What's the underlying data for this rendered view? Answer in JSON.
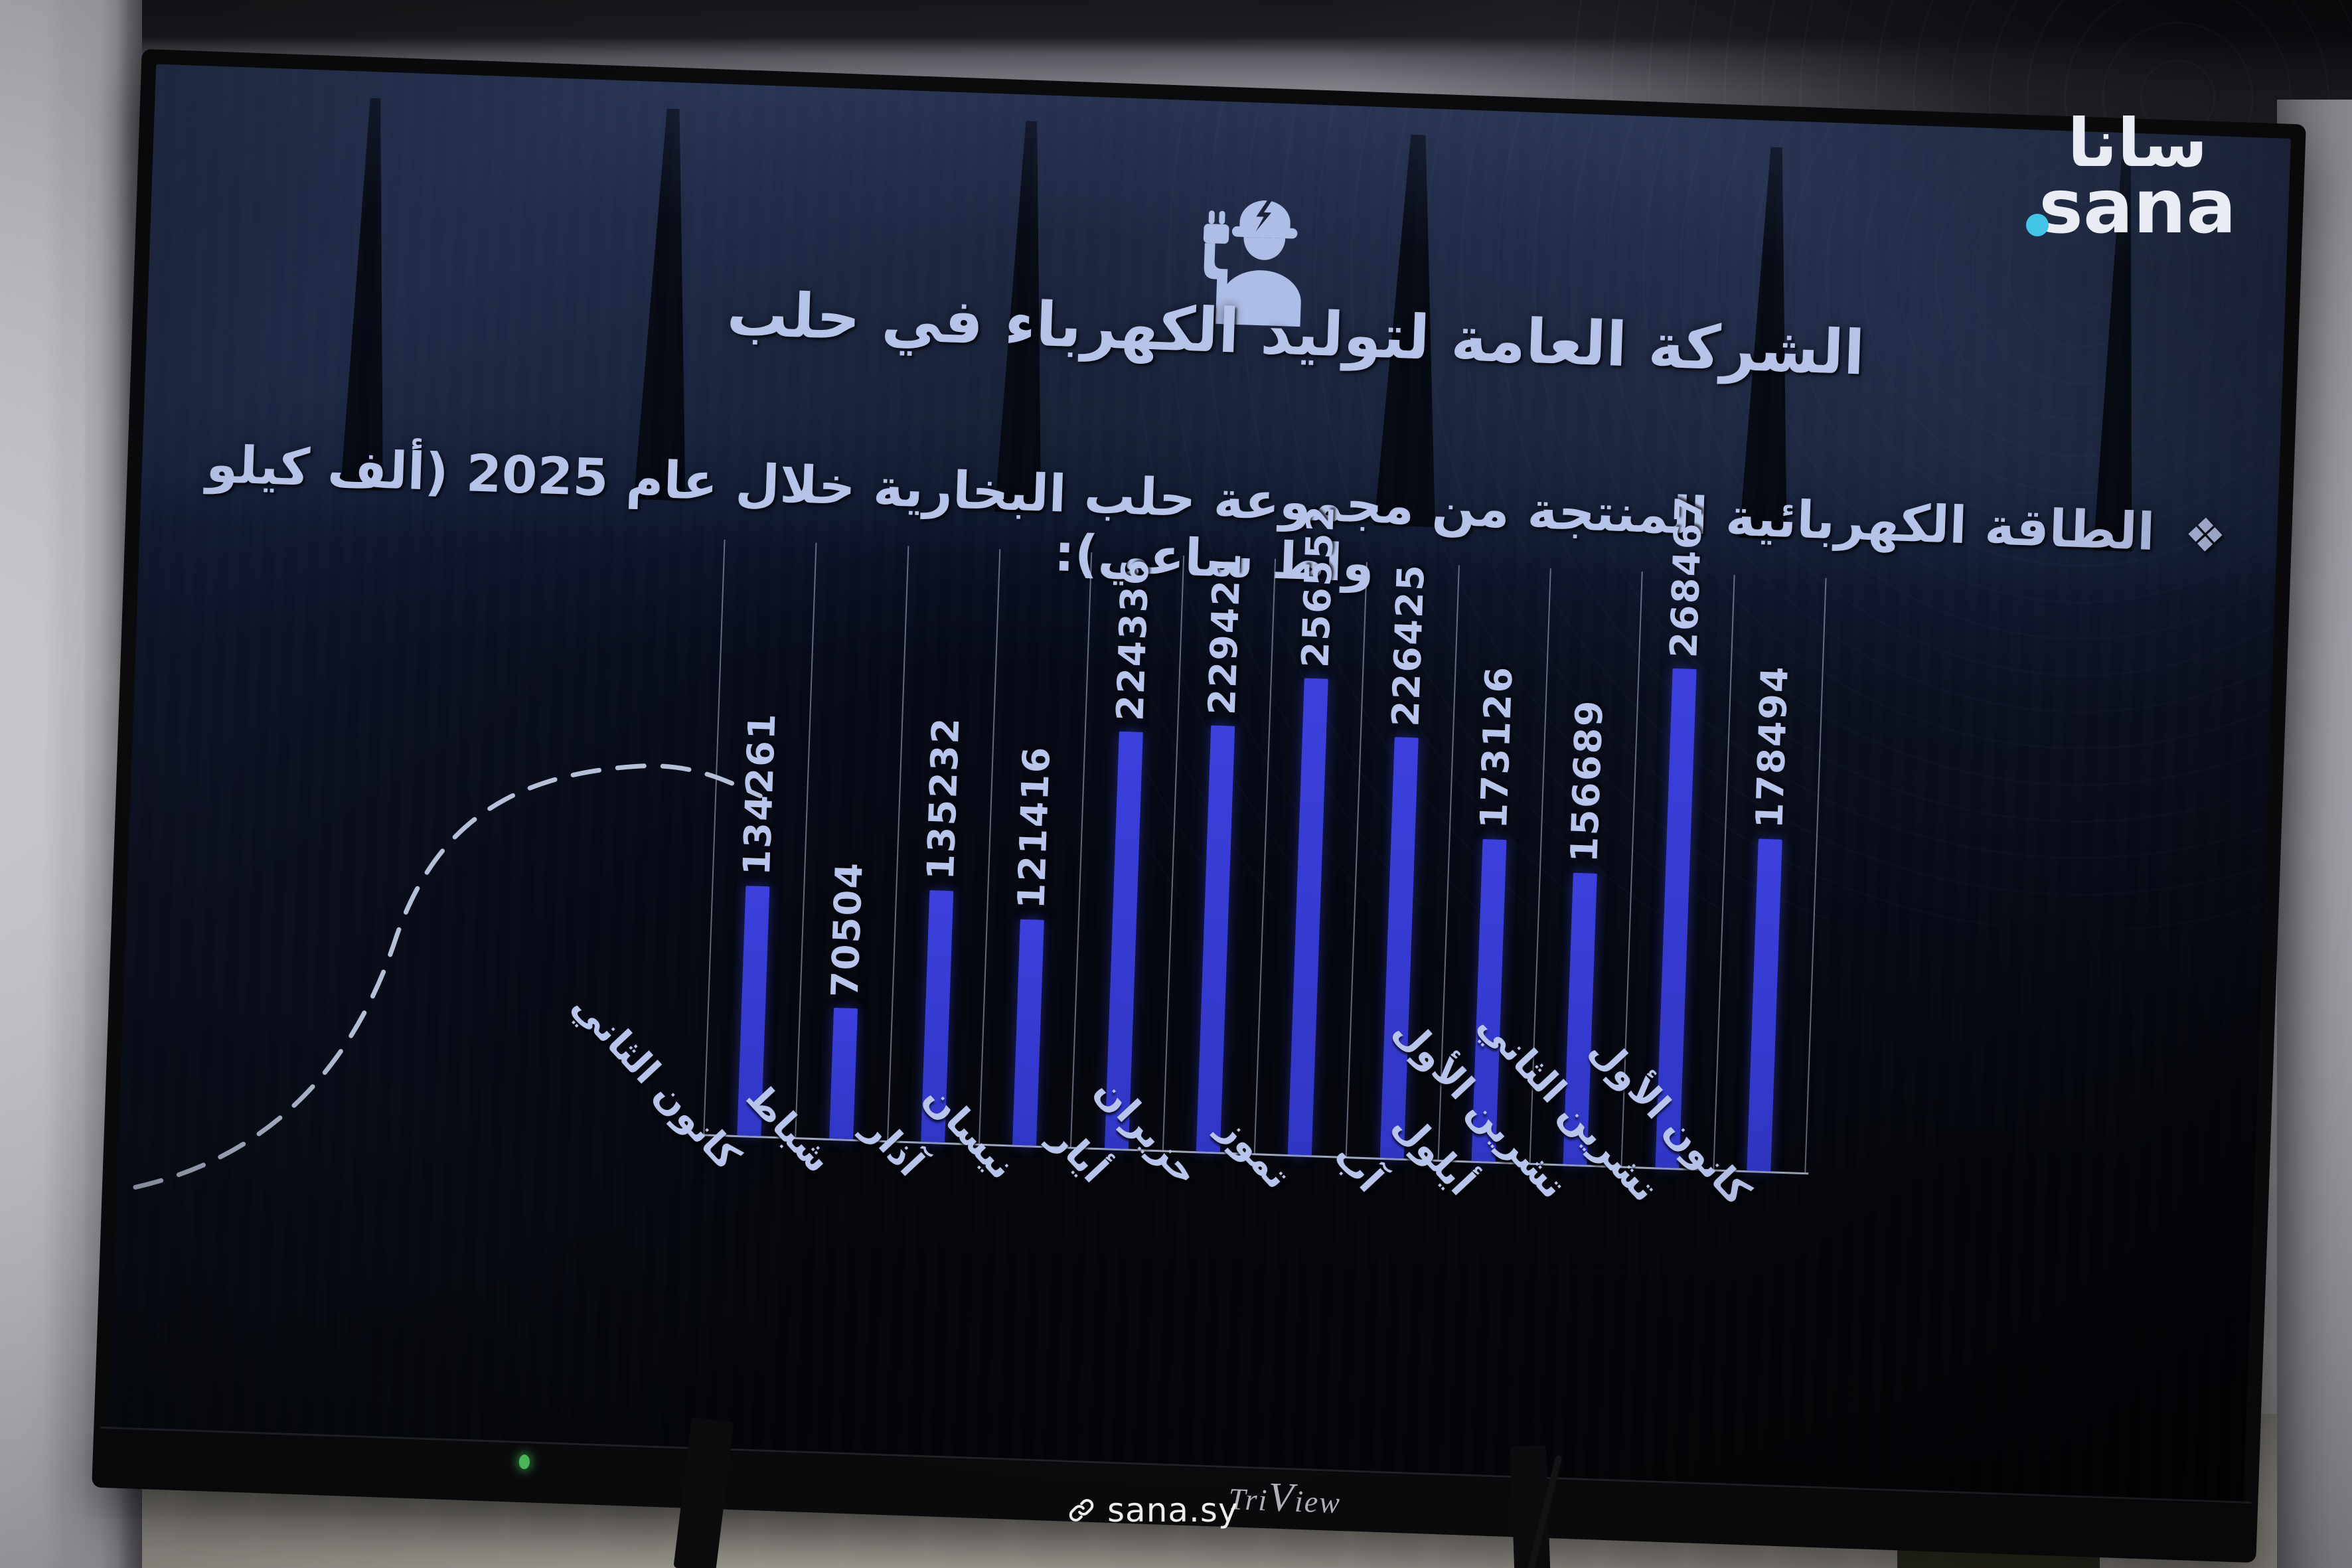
{
  "agency_logo": {
    "arabic": "سانا",
    "latin": "sana",
    "dot_color": "#41c4e6"
  },
  "slide": {
    "title": "الشركة العامة لتوليد الكهرباء في حلب",
    "bullet": "❖",
    "subtitle": "الطاقة الكهربائية المنتجة من مجموعة حلب البخارية خلال عام 2025 (ألف كيلو واط ساعي):"
  },
  "chart_data": {
    "type": "bar",
    "title": "الطاقة الكهربائية المنتجة من مجموعة حلب البخارية خلال عام 2025",
    "unit": "ألف كيلو واط ساعي",
    "categories": [
      "كانون الثاني",
      "شباط",
      "آذار",
      "نيسان",
      "أيار",
      "حزيران",
      "تموز",
      "آب",
      "أيلول",
      "تشرين الأول",
      "تشرين الثاني",
      "كانون الأول"
    ],
    "values": [
      134261,
      70504,
      135232,
      121416,
      224336,
      229421,
      256552,
      226425,
      173126,
      156689,
      268467,
      178494
    ],
    "xlabel": "",
    "ylabel": "",
    "ylim": [
      0,
      320000
    ],
    "grid": "vertical-category-separators",
    "legend": "none",
    "bar_color": "#3c40dd",
    "label_color": "#b7c4ec",
    "value_label_rotation": 90,
    "category_label_rotation": 45
  },
  "tv": {
    "brand_prefix": "Tri",
    "brand_v": "V",
    "brand_suffix": "iew",
    "power_led_color": "#55cf62"
  },
  "watermark": {
    "site": "sana.sy"
  }
}
